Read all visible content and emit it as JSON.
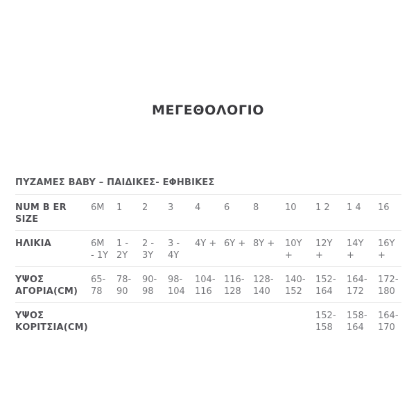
{
  "page": {
    "title": "ΜΕΓΕΘΟΛΟΓΙΟ",
    "subtitle": "ΠΥΖΑΜΕΣ BABY – ΠΑΙΔΙΚΕΣ- ΕΦΗΒΙΚΕΣ"
  },
  "table": {
    "rows": [
      {
        "label": "NUM B ER\nSIZE",
        "values": [
          "6M",
          "1",
          "2",
          "3",
          "4",
          "6",
          "8",
          "10",
          "1 2",
          "1 4",
          "16"
        ]
      },
      {
        "label": "ΗΛΙΚΙΑ",
        "values": [
          "6M\n- 1Y",
          "1 -\n2Y",
          "2 -\n3Y",
          "3 -\n4Y",
          "4Y +",
          "6Y +",
          "8Y +",
          "10Y\n+",
          "12Y\n+",
          "14Y\n+",
          "16Y\n+"
        ]
      },
      {
        "label": "ΥΨΟΣ\nΑΓΟΡΙΑ(CM)",
        "values": [
          "65-\n78",
          "78-\n90",
          "90-\n98",
          "98-\n104",
          "104-\n116",
          "116-\n128",
          "128-\n140",
          "140-\n152",
          "152-\n164",
          "164-\n172",
          "172-\n180"
        ]
      },
      {
        "label": "ΥΨΟΣ\nΚΟΡΙΤΣΙΑ(CM)",
        "values": [
          "",
          "",
          "",
          "",
          "",
          "",
          "",
          "",
          "152-\n158",
          "158-\n164",
          "164-\n170"
        ]
      }
    ]
  },
  "colors": {
    "background": "#ffffff",
    "title_text": "#3a3a3e",
    "label_text": "#505055",
    "value_text": "#77787c",
    "divider": "#eaeaea"
  }
}
